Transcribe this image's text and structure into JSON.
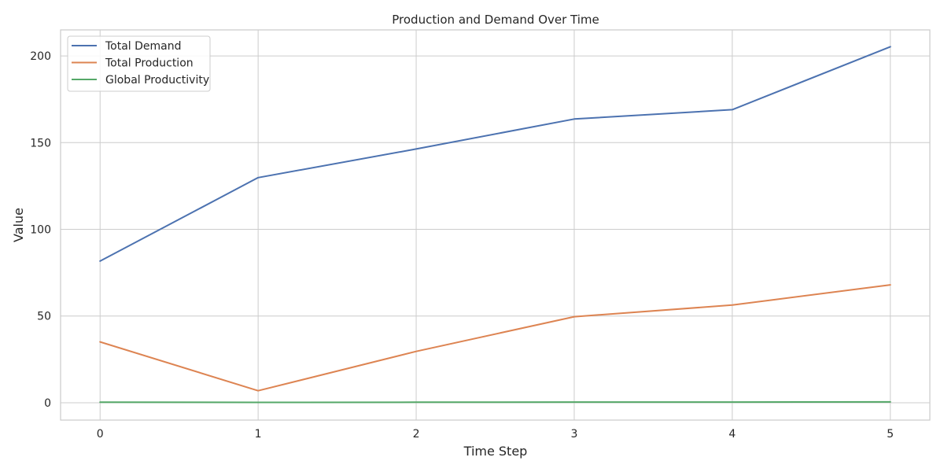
{
  "chart_data": {
    "type": "line",
    "title": "Production and Demand Over Time",
    "xlabel": "Time Step",
    "ylabel": "Value",
    "x": [
      0,
      1,
      2,
      3,
      4,
      5
    ],
    "xlim": [
      -0.25,
      5.25
    ],
    "ylim": [
      -10,
      215
    ],
    "xticks": [
      0,
      1,
      2,
      3,
      4,
      5
    ],
    "yticks": [
      0,
      50,
      100,
      150,
      200
    ],
    "grid": true,
    "legend_position": "top-left",
    "series": [
      {
        "name": "Total Demand",
        "color": "#4c72b0",
        "values": [
          81.7,
          129.8,
          146.3,
          163.6,
          169.0,
          205.3
        ]
      },
      {
        "name": "Total Production",
        "color": "#dd8452",
        "values": [
          35.1,
          6.9,
          29.6,
          49.6,
          56.3,
          68.0
        ]
      },
      {
        "name": "Global Productivity",
        "color": "#55a868",
        "values": [
          0.3,
          0.2,
          0.3,
          0.4,
          0.4,
          0.5
        ]
      }
    ]
  }
}
